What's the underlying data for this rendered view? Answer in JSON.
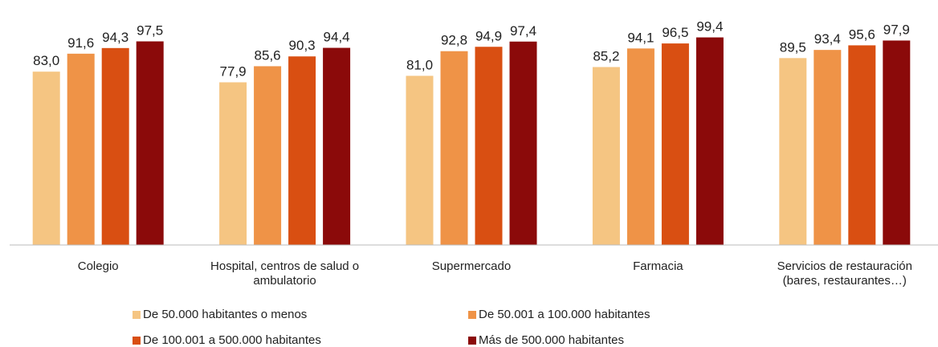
{
  "chart_data": {
    "type": "bar",
    "categories": [
      "Colegio",
      "Hospital, centros de salud o ambulatorio",
      "Supermercado",
      "Farmacia",
      "Servicios de restauración (bares, restaurantes…)"
    ],
    "series": [
      {
        "name": "De 50.000 habitantes o menos",
        "color": "#f5c582",
        "values": [
          83.0,
          77.9,
          81.0,
          85.2,
          89.5
        ],
        "value_labels": [
          "83,0",
          "77,9",
          "81,0",
          "85,2",
          "89,5"
        ]
      },
      {
        "name": "De 50.001 a 100.000 habitantes",
        "color": "#ef9347",
        "values": [
          91.6,
          85.6,
          92.8,
          94.1,
          93.4
        ],
        "value_labels": [
          "91,6",
          "85,6",
          "92,8",
          "94,1",
          "93,4"
        ]
      },
      {
        "name": "De 100.001 a 500.000 habitantes",
        "color": "#d94f12",
        "values": [
          94.3,
          90.3,
          94.9,
          96.5,
          95.6
        ],
        "value_labels": [
          "94,3",
          "90,3",
          "94,9",
          "96,5",
          "95,6"
        ]
      },
      {
        "name": "Más de 500.000 habitantes",
        "color": "#8b0a0a",
        "values": [
          97.5,
          94.4,
          97.4,
          99.4,
          97.9
        ],
        "value_labels": [
          "97,5",
          "94,4",
          "97,4",
          "99,4",
          "97,9"
        ]
      }
    ],
    "ylim": [
      0,
      100
    ],
    "legend": "bottom"
  }
}
